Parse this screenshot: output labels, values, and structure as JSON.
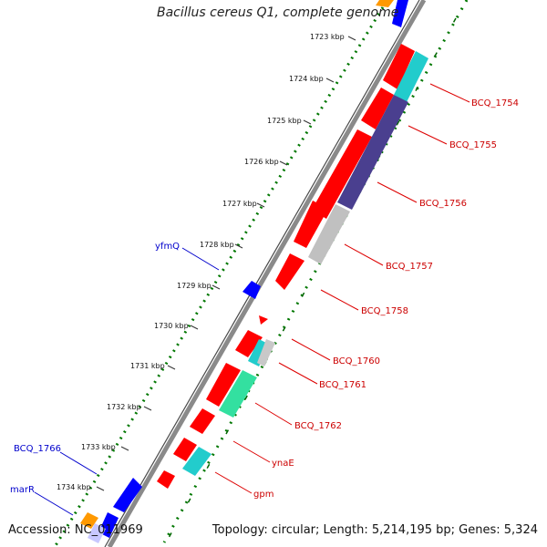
{
  "title": "Bacillus cereus Q1, complete genome",
  "accession": "Accession: NC_011969",
  "summary": "Topology: circular; Length: 5,214,195 bp; Genes: 5,324",
  "ticks": [
    "1723 kbp",
    "1724 kbp",
    "1725 kbp",
    "1726 kbp",
    "1727 kbp",
    "1728 kbp",
    "1729 kbp",
    "1730 kbp",
    "1731 kbp",
    "1732 kbp",
    "1733 kbp",
    "1734 kbp"
  ],
  "right_labels": [
    "BCQ_1754",
    "BCQ_1755",
    "BCQ_1756",
    "BCQ_1757",
    "BCQ_1758",
    "BCQ_1760",
    "BCQ_1761",
    "BCQ_1762",
    "ynaE",
    "gpm"
  ],
  "left_labels": [
    "yfmQ",
    "BCQ_1766",
    "marR"
  ],
  "colors": {
    "cds": "#ff0000",
    "reverse_cds": "#0000ff",
    "cyan": "#22cccc",
    "purple": "#4a3f8f",
    "gray": "#c0c0c0",
    "green": "#33e0a0",
    "orange": "#ff9900",
    "right_label": "#cc0000",
    "left_label": "#0000cc",
    "backbone": "#888888",
    "gc": "#007700"
  }
}
